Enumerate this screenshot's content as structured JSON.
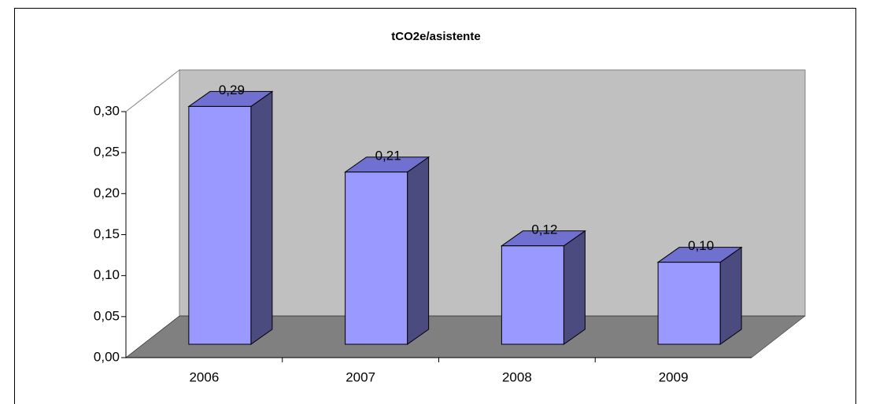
{
  "chart_data": {
    "type": "bar3d",
    "title": "tCO2e/asistente",
    "categories": [
      "2006",
      "2007",
      "2008",
      "2009"
    ],
    "values": [
      0.29,
      0.21,
      0.12,
      0.1
    ],
    "value_labels": [
      "0,29",
      "0,21",
      "0,12",
      "0,10"
    ],
    "color": "#9999ff",
    "ylim": [
      0,
      0.3
    ],
    "yticks": [
      {
        "value": 0,
        "label": "0,00"
      },
      {
        "value": 0.05,
        "label": "0,05"
      },
      {
        "value": 0.1,
        "label": "0,10"
      },
      {
        "value": 0.15,
        "label": "0,15"
      },
      {
        "value": 0.2,
        "label": "0,20"
      },
      {
        "value": 0.25,
        "label": "0,25"
      },
      {
        "value": 0.3,
        "label": "0,30"
      }
    ]
  }
}
